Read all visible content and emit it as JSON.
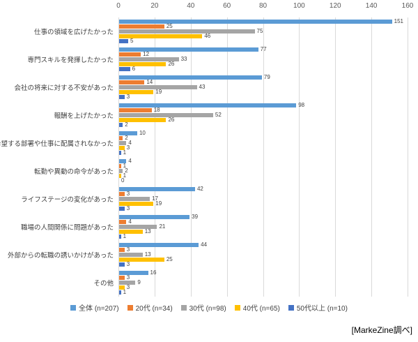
{
  "source": "[MarkeZine調べ]",
  "chart_data": {
    "type": "bar",
    "orientation": "horizontal",
    "title": "",
    "xlabel": "",
    "ylabel": "",
    "xlim": [
      0,
      160
    ],
    "x_ticks": [
      0,
      20,
      40,
      60,
      80,
      100,
      120,
      140,
      160
    ],
    "grid": true,
    "legend_position": "bottom",
    "categories": [
      "仕事の領域を広げたかった",
      "専門スキルを発揮したかった",
      "会社の将来に対する不安があった",
      "報酬を上げたかった",
      "希望する部署や仕事に配属されなかった",
      "転勤や異動の命令があった",
      "ライフステージの変化があった",
      "職場の人間関係に問題があった",
      "外部からの転職の誘いかけがあった",
      "その他"
    ],
    "series": [
      {
        "name": "全体",
        "legend_label": "全体 (n=207)",
        "color": "#5B9BD5",
        "values": [
          151,
          77,
          79,
          98,
          10,
          4,
          42,
          39,
          44,
          16
        ]
      },
      {
        "name": "20代",
        "legend_label": "20代 (n=34)",
        "color": "#ED7D31",
        "values": [
          25,
          12,
          14,
          18,
          2,
          1,
          3,
          4,
          3,
          3
        ]
      },
      {
        "name": "30代",
        "legend_label": "30代 (n=98)",
        "color": "#A5A5A5",
        "values": [
          75,
          33,
          43,
          52,
          4,
          2,
          17,
          21,
          13,
          9
        ]
      },
      {
        "name": "40代",
        "legend_label": "40代 (n=65)",
        "color": "#FFC000",
        "values": [
          46,
          26,
          19,
          26,
          3,
          1,
          19,
          13,
          25,
          3
        ]
      },
      {
        "name": "50代以上",
        "legend_label": "50代以上 (n=10)",
        "color": "#4472C4",
        "values": [
          5,
          6,
          3,
          2,
          1,
          0,
          3,
          1,
          3,
          1
        ]
      }
    ]
  }
}
